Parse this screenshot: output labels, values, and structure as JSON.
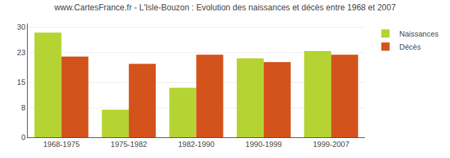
{
  "chart_data": {
    "type": "bar",
    "title": "www.CartesFrance.fr - L'Isle-Bouzon : Evolution des naissances et décès entre 1968 et 2007",
    "categories": [
      "1968-1975",
      "1975-1982",
      "1982-1990",
      "1990-1999",
      "1999-2007"
    ],
    "series": [
      {
        "name": "Naissances",
        "color": "#b5d433",
        "values": [
          28.5,
          7.5,
          13.5,
          21.5,
          23.5
        ]
      },
      {
        "name": "Décès",
        "color": "#d4531c",
        "values": [
          22.0,
          20.0,
          22.5,
          20.5,
          22.5
        ]
      }
    ],
    "ylim": [
      0,
      31
    ],
    "yticks": [
      0,
      8,
      15,
      23,
      30
    ],
    "grid": true,
    "legend": "upper right"
  }
}
